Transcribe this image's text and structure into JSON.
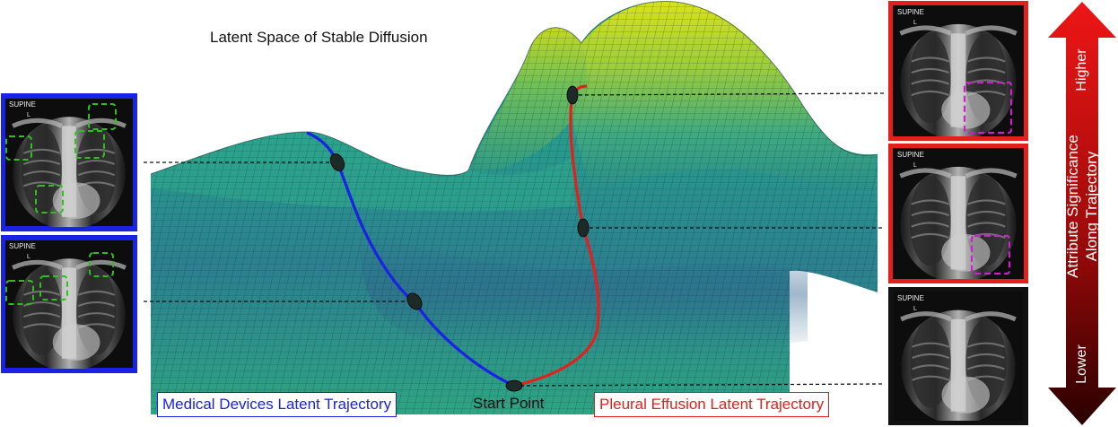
{
  "surface_title": "Latent Space of Stable Diffusion",
  "start_point_label": "Start Point",
  "legend": {
    "medical_devices": "Medical Devices Latent Trajectory",
    "pleural_effusion": "Pleural Effusion Latent Trajectory"
  },
  "significance_arrow": {
    "title_line1": "Attribute Significance",
    "title_line2": "Along Trajectory",
    "higher": "Higher",
    "lower": "Lower"
  },
  "xray_header_text": "SUPINE",
  "xray_marker_text": "L",
  "colors": {
    "medical_devices_trajectory": "#1a22e6",
    "pleural_effusion_trajectory": "#e2201c",
    "device_box": "#2ec11c",
    "effusion_box": "#cc22cc",
    "surface_low": "#23807f",
    "surface_high": "#d7e01b"
  }
}
